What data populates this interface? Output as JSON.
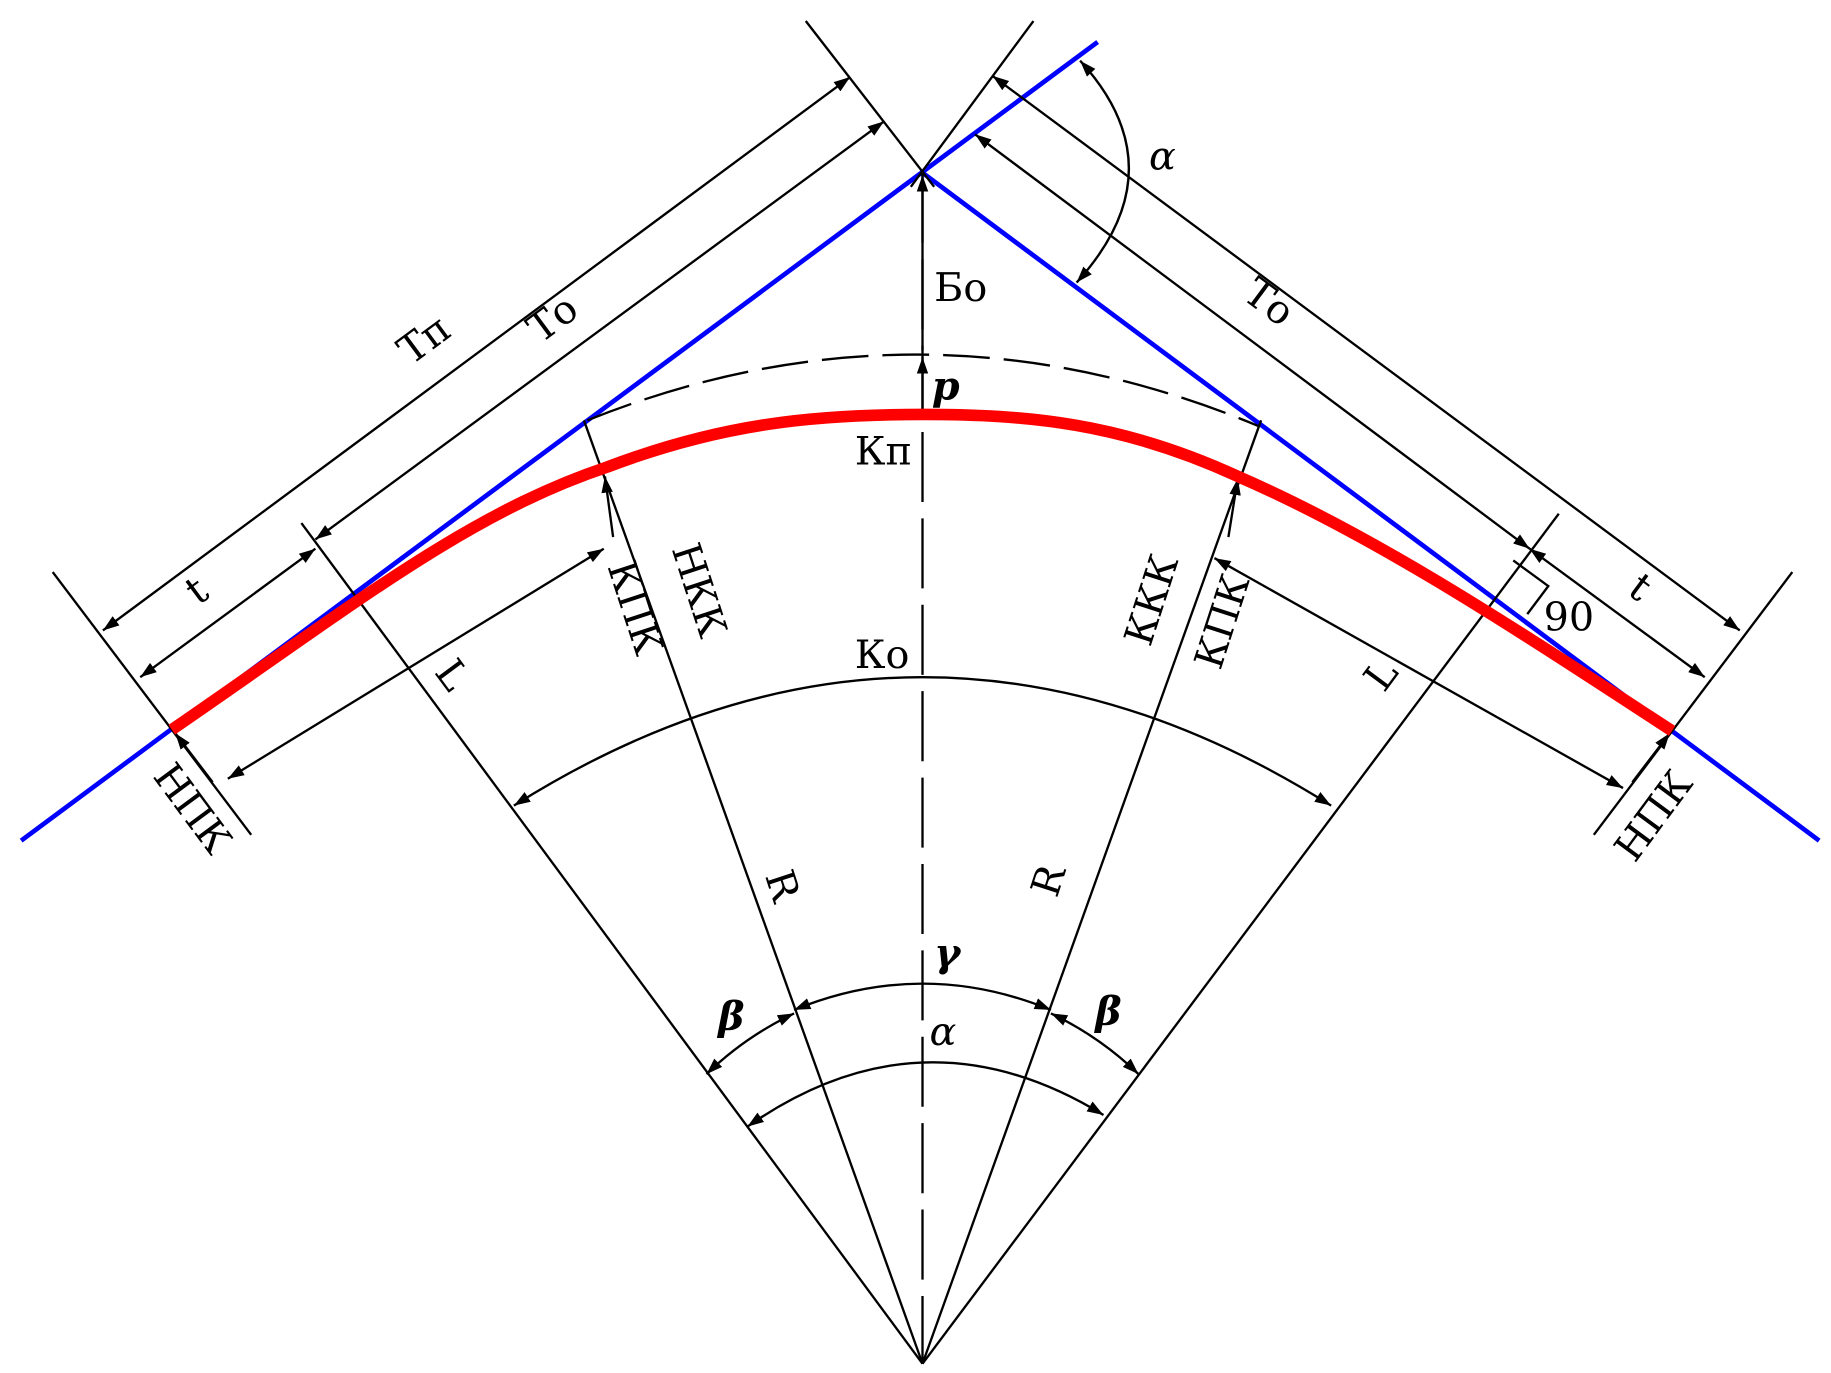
{
  "labels": {
    "Tp": "Тп",
    "To_left": "То",
    "To_right": "То",
    "t_left": "t",
    "t_right": "t",
    "L_left": "L",
    "L_right": "L",
    "NPK_left": "НПК",
    "NPK_right": "НПК",
    "KPK_left": "КПК",
    "KPK_right": "КПК",
    "NKK": "НКК",
    "KKK": "ККК",
    "Bo": "Бо",
    "rho": "р",
    "Kp": "Кп",
    "Ko": "Ко",
    "R_left": "R",
    "R_right": "R",
    "gamma": "γ",
    "beta_left": "β",
    "beta_right": "β",
    "alpha_bottom": "α",
    "alpha_top": "α",
    "right_angle": "90"
  },
  "colors": {
    "tangent_lines": "#0000ff",
    "transition_curve": "#ff0000",
    "construction": "#000000"
  }
}
